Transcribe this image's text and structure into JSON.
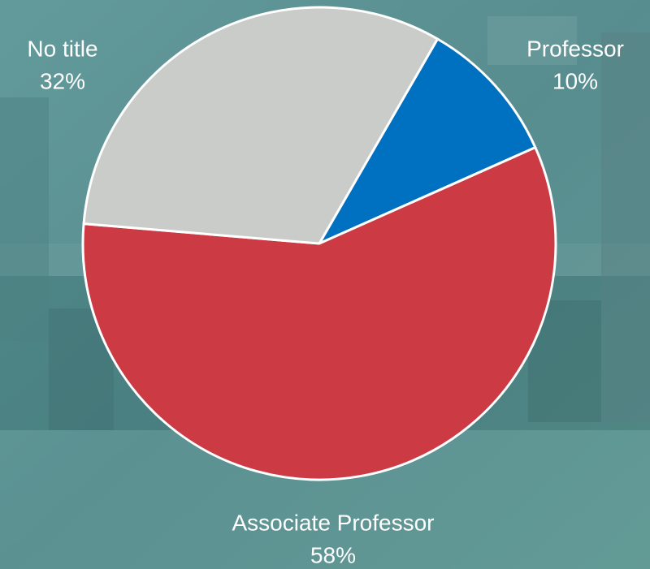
{
  "chart_data": {
    "type": "pie",
    "categories": [
      "Professor",
      "Associate Professor",
      "No title"
    ],
    "values": [
      10,
      58,
      32
    ],
    "value_labels": [
      "10%",
      "58%",
      "32%"
    ],
    "colors": [
      "#0070c0",
      "#cc3a43",
      "#c9ccc8"
    ]
  }
}
